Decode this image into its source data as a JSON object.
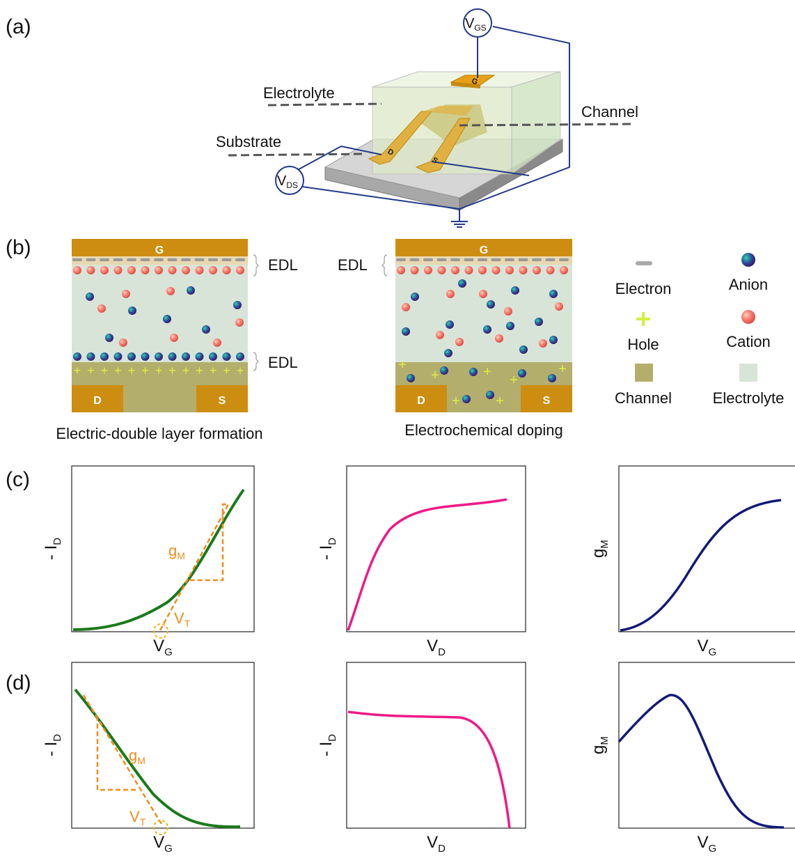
{
  "panels": {
    "a": {
      "label": "(a)",
      "vgs": {
        "main": "V",
        "sub": "GS"
      },
      "vds": {
        "main": "V",
        "sub": "DS"
      },
      "electrolyte": "Electrolyte",
      "channel": "Channel",
      "substrate": "Substrate",
      "gate": "G",
      "drain": "D",
      "source": "S"
    },
    "b": {
      "label": "(b)",
      "edl_formation": {
        "gate": "G",
        "drain": "D",
        "source": "S",
        "edl_top": "EDL",
        "edl_bottom": "EDL",
        "caption": "Electric-double layer formation"
      },
      "doping": {
        "gate": "G",
        "drain": "D",
        "source": "S",
        "edl": "EDL",
        "caption": "Electrochemical doping"
      },
      "legend": [
        "Electron",
        "Anion",
        "Hole",
        "Cation",
        "Channel",
        "Electrolyte"
      ]
    },
    "c": {
      "label": "(c)",
      "plots": [
        {
          "ylabel": {
            "main": "- I",
            "sub": "D"
          },
          "xlabel": {
            "main": "V",
            "sub": "G"
          },
          "slope": {
            "main": "g",
            "sub": "M"
          },
          "threshold": {
            "main": "V",
            "sub": "T"
          }
        },
        {
          "ylabel": {
            "main": "- I",
            "sub": "D"
          },
          "xlabel": {
            "main": "V",
            "sub": "D"
          }
        },
        {
          "ylabel": {
            "main": "g",
            "sub": "M"
          },
          "xlabel": {
            "main": "V",
            "sub": "G"
          }
        }
      ]
    },
    "d": {
      "label": "(d)",
      "plots": [
        {
          "ylabel": {
            "main": "- I",
            "sub": "D"
          },
          "xlabel": {
            "main": "V",
            "sub": "G"
          },
          "slope": {
            "main": "g",
            "sub": "M"
          },
          "threshold": {
            "main": "V",
            "sub": "T"
          }
        },
        {
          "ylabel": {
            "main": "- I",
            "sub": "D"
          },
          "xlabel": {
            "main": "V",
            "sub": "D"
          }
        },
        {
          "ylabel": {
            "main": "g",
            "sub": "M"
          },
          "xlabel": {
            "main": "V",
            "sub": "G"
          }
        }
      ]
    }
  }
}
